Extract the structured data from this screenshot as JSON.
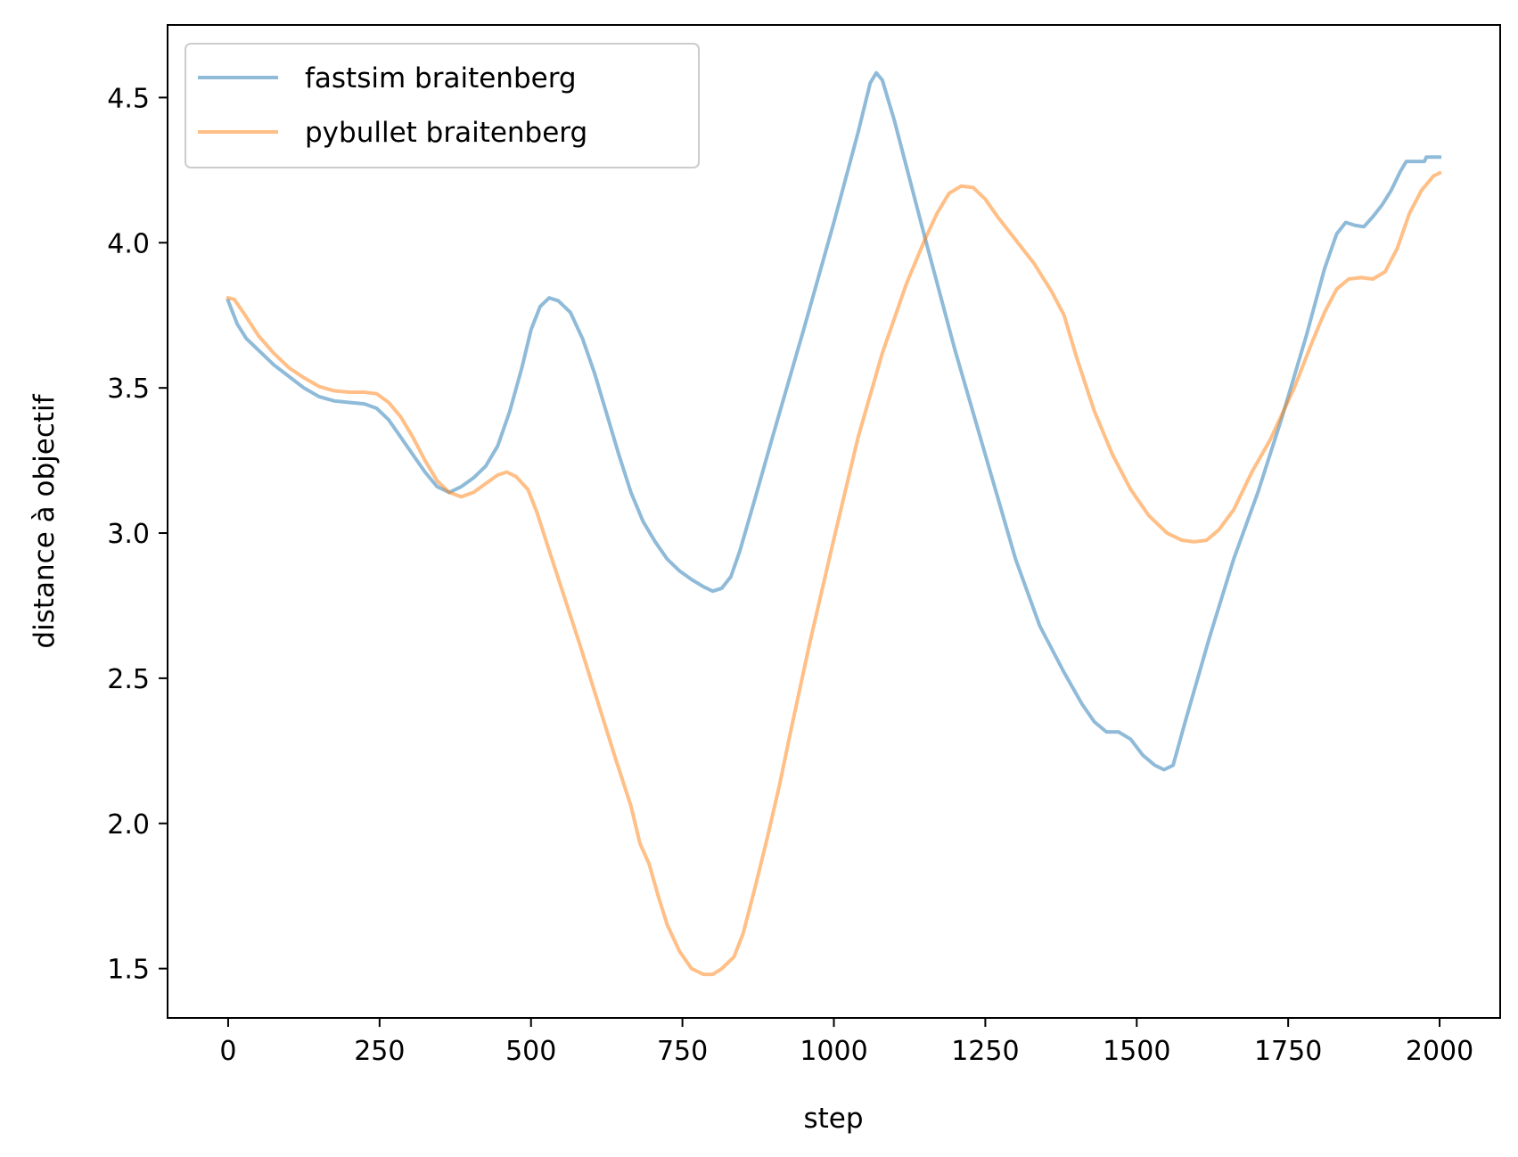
{
  "chart_data": {
    "type": "line",
    "title": "",
    "xlabel": "step",
    "ylabel": "distance à objectif",
    "xlim": [
      -100,
      2100
    ],
    "ylim": [
      1.33,
      4.75
    ],
    "xticks": [
      0,
      250,
      500,
      750,
      1000,
      1250,
      1500,
      1750,
      2000
    ],
    "xtick_labels": [
      "0",
      "250",
      "500",
      "750",
      "1000",
      "1250",
      "1500",
      "1750",
      "2000"
    ],
    "yticks": [
      1.5,
      2.0,
      2.5,
      3.0,
      3.5,
      4.0,
      4.5
    ],
    "ytick_labels": [
      "1.5",
      "2.0",
      "2.5",
      "3.0",
      "3.5",
      "4.0",
      "4.5"
    ],
    "grid": false,
    "legend_position": "top-left",
    "series": [
      {
        "name": "fastsim braitenberg",
        "color": "#1f77b4",
        "alpha": 0.5,
        "points": [
          [
            0,
            3.8
          ],
          [
            15,
            3.72
          ],
          [
            30,
            3.67
          ],
          [
            50,
            3.63
          ],
          [
            75,
            3.58
          ],
          [
            100,
            3.54
          ],
          [
            125,
            3.5
          ],
          [
            150,
            3.47
          ],
          [
            175,
            3.455
          ],
          [
            200,
            3.45
          ],
          [
            225,
            3.445
          ],
          [
            245,
            3.43
          ],
          [
            265,
            3.39
          ],
          [
            285,
            3.33
          ],
          [
            305,
            3.27
          ],
          [
            325,
            3.21
          ],
          [
            345,
            3.16
          ],
          [
            365,
            3.14
          ],
          [
            385,
            3.16
          ],
          [
            405,
            3.19
          ],
          [
            425,
            3.23
          ],
          [
            445,
            3.3
          ],
          [
            465,
            3.42
          ],
          [
            485,
            3.57
          ],
          [
            500,
            3.7
          ],
          [
            515,
            3.78
          ],
          [
            530,
            3.81
          ],
          [
            545,
            3.8
          ],
          [
            565,
            3.76
          ],
          [
            585,
            3.67
          ],
          [
            605,
            3.55
          ],
          [
            625,
            3.41
          ],
          [
            645,
            3.27
          ],
          [
            665,
            3.14
          ],
          [
            685,
            3.04
          ],
          [
            705,
            2.97
          ],
          [
            725,
            2.91
          ],
          [
            745,
            2.87
          ],
          [
            765,
            2.84
          ],
          [
            785,
            2.815
          ],
          [
            800,
            2.8
          ],
          [
            815,
            2.81
          ],
          [
            830,
            2.85
          ],
          [
            845,
            2.94
          ],
          [
            870,
            3.12
          ],
          [
            900,
            3.34
          ],
          [
            950,
            3.7
          ],
          [
            1000,
            4.07
          ],
          [
            1040,
            4.38
          ],
          [
            1060,
            4.55
          ],
          [
            1070,
            4.585
          ],
          [
            1080,
            4.56
          ],
          [
            1100,
            4.42
          ],
          [
            1150,
            4.02
          ],
          [
            1200,
            3.63
          ],
          [
            1250,
            3.27
          ],
          [
            1300,
            2.91
          ],
          [
            1340,
            2.68
          ],
          [
            1380,
            2.52
          ],
          [
            1410,
            2.41
          ],
          [
            1430,
            2.35
          ],
          [
            1450,
            2.315
          ],
          [
            1470,
            2.315
          ],
          [
            1490,
            2.29
          ],
          [
            1510,
            2.235
          ],
          [
            1530,
            2.2
          ],
          [
            1545,
            2.185
          ],
          [
            1560,
            2.2
          ],
          [
            1580,
            2.35
          ],
          [
            1620,
            2.64
          ],
          [
            1660,
            2.91
          ],
          [
            1700,
            3.14
          ],
          [
            1740,
            3.4
          ],
          [
            1780,
            3.68
          ],
          [
            1810,
            3.91
          ],
          [
            1830,
            4.03
          ],
          [
            1845,
            4.07
          ],
          [
            1860,
            4.06
          ],
          [
            1875,
            4.055
          ],
          [
            1890,
            4.09
          ],
          [
            1905,
            4.13
          ],
          [
            1920,
            4.18
          ],
          [
            1935,
            4.245
          ],
          [
            1945,
            4.28
          ],
          [
            1960,
            4.28
          ],
          [
            1975,
            4.28
          ],
          [
            1978,
            4.295
          ],
          [
            2000,
            4.295
          ]
        ]
      },
      {
        "name": "pybullet braitenberg",
        "color": "#ff7f0e",
        "alpha": 0.5,
        "points": [
          [
            0,
            3.81
          ],
          [
            10,
            3.805
          ],
          [
            25,
            3.76
          ],
          [
            50,
            3.68
          ],
          [
            75,
            3.62
          ],
          [
            100,
            3.57
          ],
          [
            125,
            3.535
          ],
          [
            150,
            3.505
          ],
          [
            175,
            3.49
          ],
          [
            200,
            3.485
          ],
          [
            225,
            3.485
          ],
          [
            245,
            3.48
          ],
          [
            265,
            3.45
          ],
          [
            285,
            3.4
          ],
          [
            305,
            3.33
          ],
          [
            325,
            3.25
          ],
          [
            345,
            3.18
          ],
          [
            365,
            3.14
          ],
          [
            385,
            3.125
          ],
          [
            405,
            3.14
          ],
          [
            425,
            3.17
          ],
          [
            445,
            3.2
          ],
          [
            460,
            3.21
          ],
          [
            475,
            3.195
          ],
          [
            495,
            3.15
          ],
          [
            510,
            3.07
          ],
          [
            530,
            2.94
          ],
          [
            555,
            2.78
          ],
          [
            580,
            2.62
          ],
          [
            610,
            2.42
          ],
          [
            640,
            2.22
          ],
          [
            665,
            2.06
          ],
          [
            680,
            1.93
          ],
          [
            695,
            1.86
          ],
          [
            710,
            1.75
          ],
          [
            725,
            1.65
          ],
          [
            745,
            1.56
          ],
          [
            765,
            1.5
          ],
          [
            785,
            1.48
          ],
          [
            800,
            1.48
          ],
          [
            815,
            1.5
          ],
          [
            835,
            1.54
          ],
          [
            850,
            1.62
          ],
          [
            870,
            1.78
          ],
          [
            890,
            1.95
          ],
          [
            910,
            2.13
          ],
          [
            930,
            2.33
          ],
          [
            960,
            2.62
          ],
          [
            1000,
            2.98
          ],
          [
            1040,
            3.33
          ],
          [
            1080,
            3.62
          ],
          [
            1120,
            3.86
          ],
          [
            1150,
            4.01
          ],
          [
            1170,
            4.1
          ],
          [
            1190,
            4.17
          ],
          [
            1210,
            4.195
          ],
          [
            1230,
            4.19
          ],
          [
            1250,
            4.15
          ],
          [
            1270,
            4.09
          ],
          [
            1300,
            4.01
          ],
          [
            1330,
            3.93
          ],
          [
            1360,
            3.83
          ],
          [
            1380,
            3.75
          ],
          [
            1400,
            3.61
          ],
          [
            1430,
            3.42
          ],
          [
            1460,
            3.27
          ],
          [
            1490,
            3.15
          ],
          [
            1520,
            3.06
          ],
          [
            1550,
            3.0
          ],
          [
            1575,
            2.975
          ],
          [
            1595,
            2.97
          ],
          [
            1615,
            2.975
          ],
          [
            1635,
            3.01
          ],
          [
            1660,
            3.08
          ],
          [
            1690,
            3.21
          ],
          [
            1720,
            3.32
          ],
          [
            1760,
            3.5
          ],
          [
            1790,
            3.66
          ],
          [
            1810,
            3.76
          ],
          [
            1830,
            3.84
          ],
          [
            1850,
            3.875
          ],
          [
            1870,
            3.88
          ],
          [
            1890,
            3.875
          ],
          [
            1910,
            3.9
          ],
          [
            1930,
            3.98
          ],
          [
            1950,
            4.1
          ],
          [
            1970,
            4.18
          ],
          [
            1990,
            4.23
          ],
          [
            2000,
            4.24
          ]
        ]
      }
    ]
  }
}
